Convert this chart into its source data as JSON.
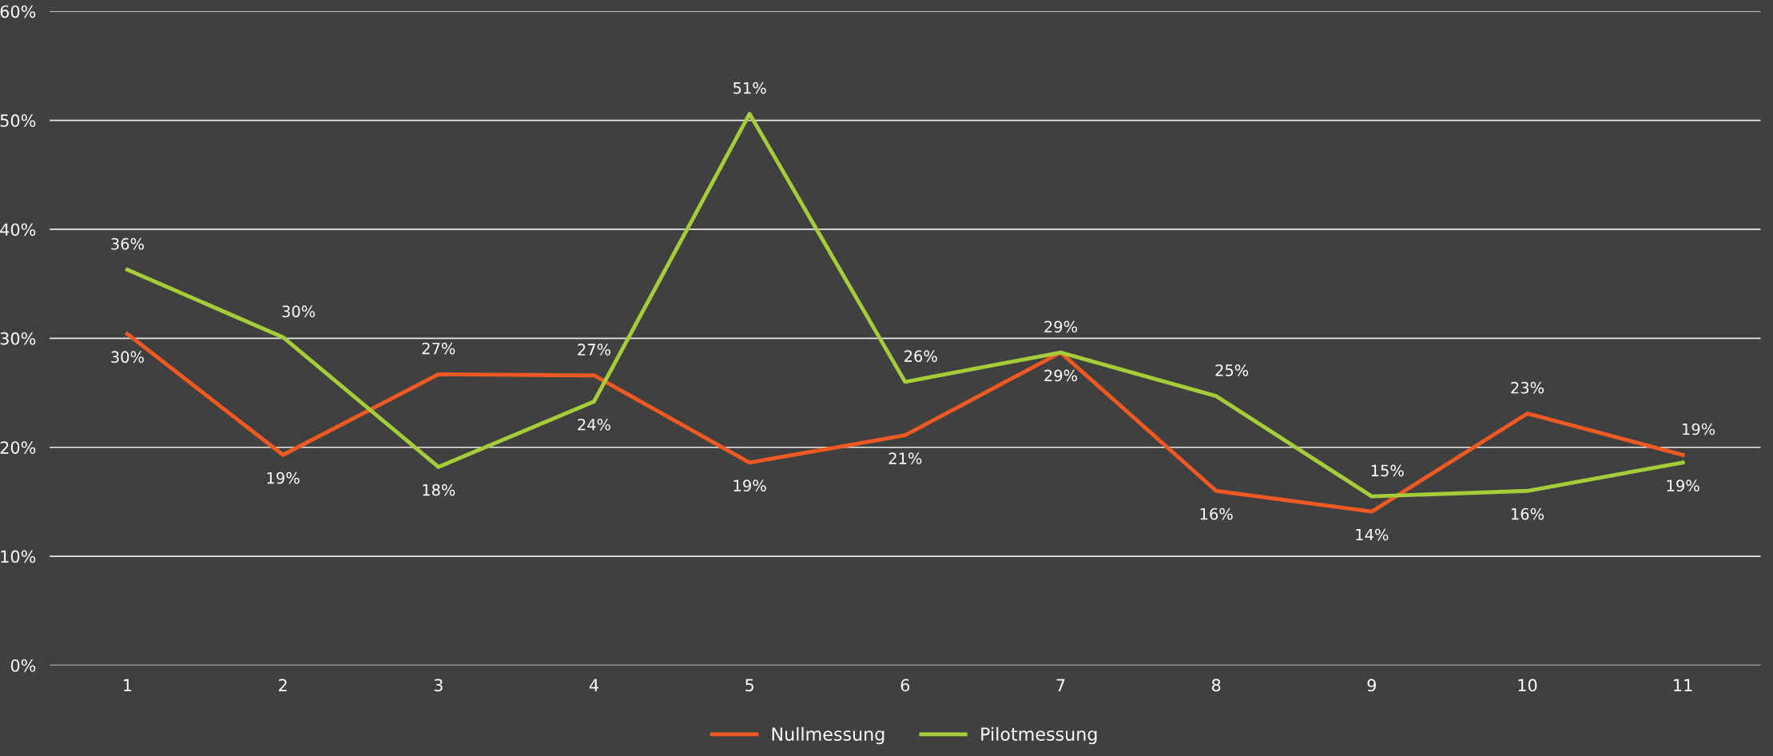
{
  "chart_data": {
    "type": "line",
    "categories": [
      "1",
      "2",
      "3",
      "4",
      "5",
      "6",
      "7",
      "8",
      "9",
      "10",
      "11"
    ],
    "series": [
      {
        "name": "Nullmessung",
        "color": "#f05a22",
        "values": [
          30.4,
          19.3,
          26.7,
          26.6,
          18.6,
          21.1,
          28.7,
          16.0,
          14.1,
          23.1,
          19.3
        ],
        "value_labels": [
          "30%",
          "19%",
          "27%",
          "27%",
          "19%",
          "21%",
          "29%",
          "16%",
          "14%",
          "23%",
          "19%"
        ]
      },
      {
        "name": "Pilotmessung",
        "color": "#a5cd39",
        "values": [
          36.3,
          30.1,
          18.2,
          24.2,
          50.6,
          26.0,
          28.7,
          24.7,
          15.5,
          16.0,
          18.6
        ],
        "value_labels": [
          "36%",
          "30%",
          "18%",
          "24%",
          "51%",
          "26%",
          "29%",
          "25%",
          "15%",
          "16%",
          "19%"
        ]
      }
    ],
    "ylim": [
      0,
      60
    ],
    "yticks": [
      {
        "value": 0,
        "label": "0%"
      },
      {
        "value": 10,
        "label": "10%"
      },
      {
        "value": 20,
        "label": "20%"
      },
      {
        "value": 30,
        "label": "30%"
      },
      {
        "value": 40,
        "label": "40%"
      },
      {
        "value": 50,
        "label": "50%"
      },
      {
        "value": 60,
        "label": "60%"
      }
    ],
    "grid": "y",
    "legend": "bottom",
    "marker": "none",
    "line_style": "solid"
  }
}
